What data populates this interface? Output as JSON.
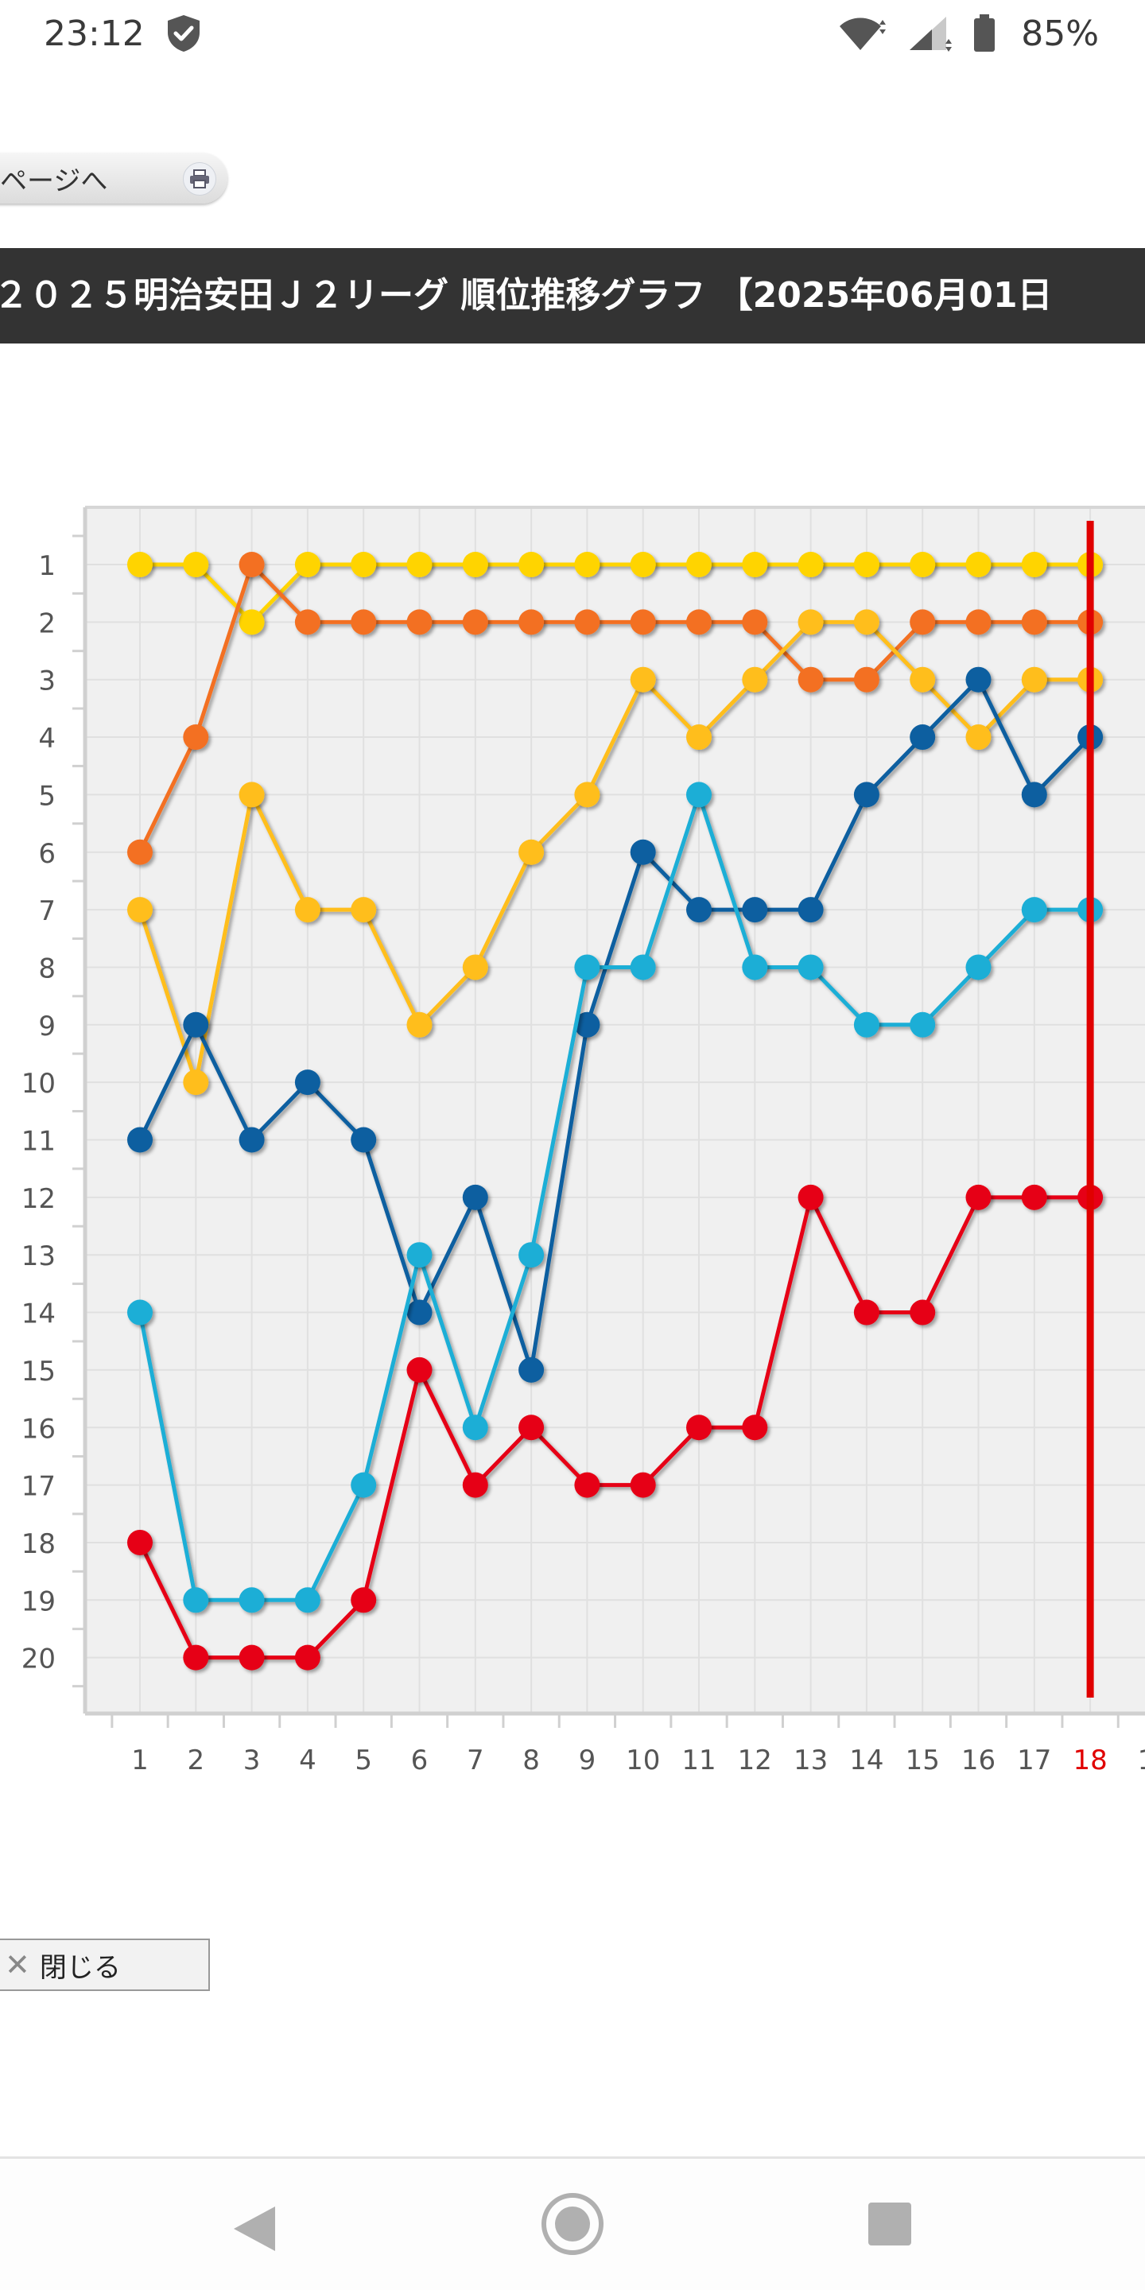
{
  "status_bar": {
    "time": "23:12",
    "battery": "85%",
    "icons": [
      "shield-icon",
      "wifi-icon",
      "signal-icon",
      "battery-icon"
    ]
  },
  "print_button": {
    "label": "ページへ",
    "icon": "printer-icon"
  },
  "title": "２０２５明治安田Ｊ２リーグ 順位推移グラフ 【2025年06月01日",
  "close_button": {
    "label": "閉じる",
    "icon": "close-icon"
  },
  "nav_bar": {
    "icons": [
      "back-icon",
      "home-icon",
      "recent-apps-icon"
    ]
  },
  "chart_data": {
    "type": "line",
    "x": [
      1,
      2,
      3,
      4,
      5,
      6,
      7,
      8,
      9,
      10,
      11,
      12,
      13,
      14,
      15,
      16,
      17,
      18
    ],
    "x_tick_labels": [
      "1",
      "2",
      "3",
      "4",
      "5",
      "6",
      "7",
      "8",
      "9",
      "10",
      "11",
      "12",
      "13",
      "14",
      "15",
      "16",
      "17",
      "18",
      "1"
    ],
    "highlight_x": 18,
    "highlight_color": "#e00000",
    "y_tick_labels": [
      "1",
      "2",
      "3",
      "4",
      "5",
      "6",
      "7",
      "8",
      "9",
      "10",
      "11",
      "12",
      "13",
      "14",
      "15",
      "16",
      "17",
      "18",
      "19",
      "20"
    ],
    "ylim": [
      1,
      20
    ],
    "y_inverted": true,
    "grid": true,
    "series": [
      {
        "color": "#ffd400",
        "values": [
          1,
          1,
          2,
          1,
          1,
          1,
          1,
          1,
          1,
          1,
          1,
          1,
          1,
          1,
          1,
          1,
          1,
          1
        ]
      },
      {
        "color": "#f37021",
        "values": [
          6,
          4,
          1,
          2,
          2,
          2,
          2,
          2,
          2,
          2,
          2,
          2,
          3,
          3,
          2,
          2,
          2,
          2
        ]
      },
      {
        "color": "#ffbe1a",
        "values": [
          7,
          10,
          5,
          7,
          7,
          9,
          8,
          6,
          5,
          3,
          4,
          3,
          2,
          2,
          3,
          4,
          3,
          3
        ]
      },
      {
        "color": "#0a5fa0",
        "values": [
          11,
          9,
          11,
          10,
          11,
          14,
          12,
          15,
          9,
          6,
          7,
          7,
          7,
          5,
          4,
          3,
          5,
          4
        ]
      },
      {
        "color": "#1aaed6",
        "values": [
          14,
          19,
          19,
          19,
          17,
          13,
          16,
          13,
          8,
          8,
          5,
          8,
          8,
          9,
          9,
          8,
          7,
          7
        ]
      },
      {
        "color": "#e60012",
        "values": [
          18,
          20,
          20,
          20,
          19,
          15,
          17,
          16,
          17,
          17,
          16,
          16,
          12,
          14,
          14,
          12,
          12,
          12
        ]
      }
    ]
  }
}
